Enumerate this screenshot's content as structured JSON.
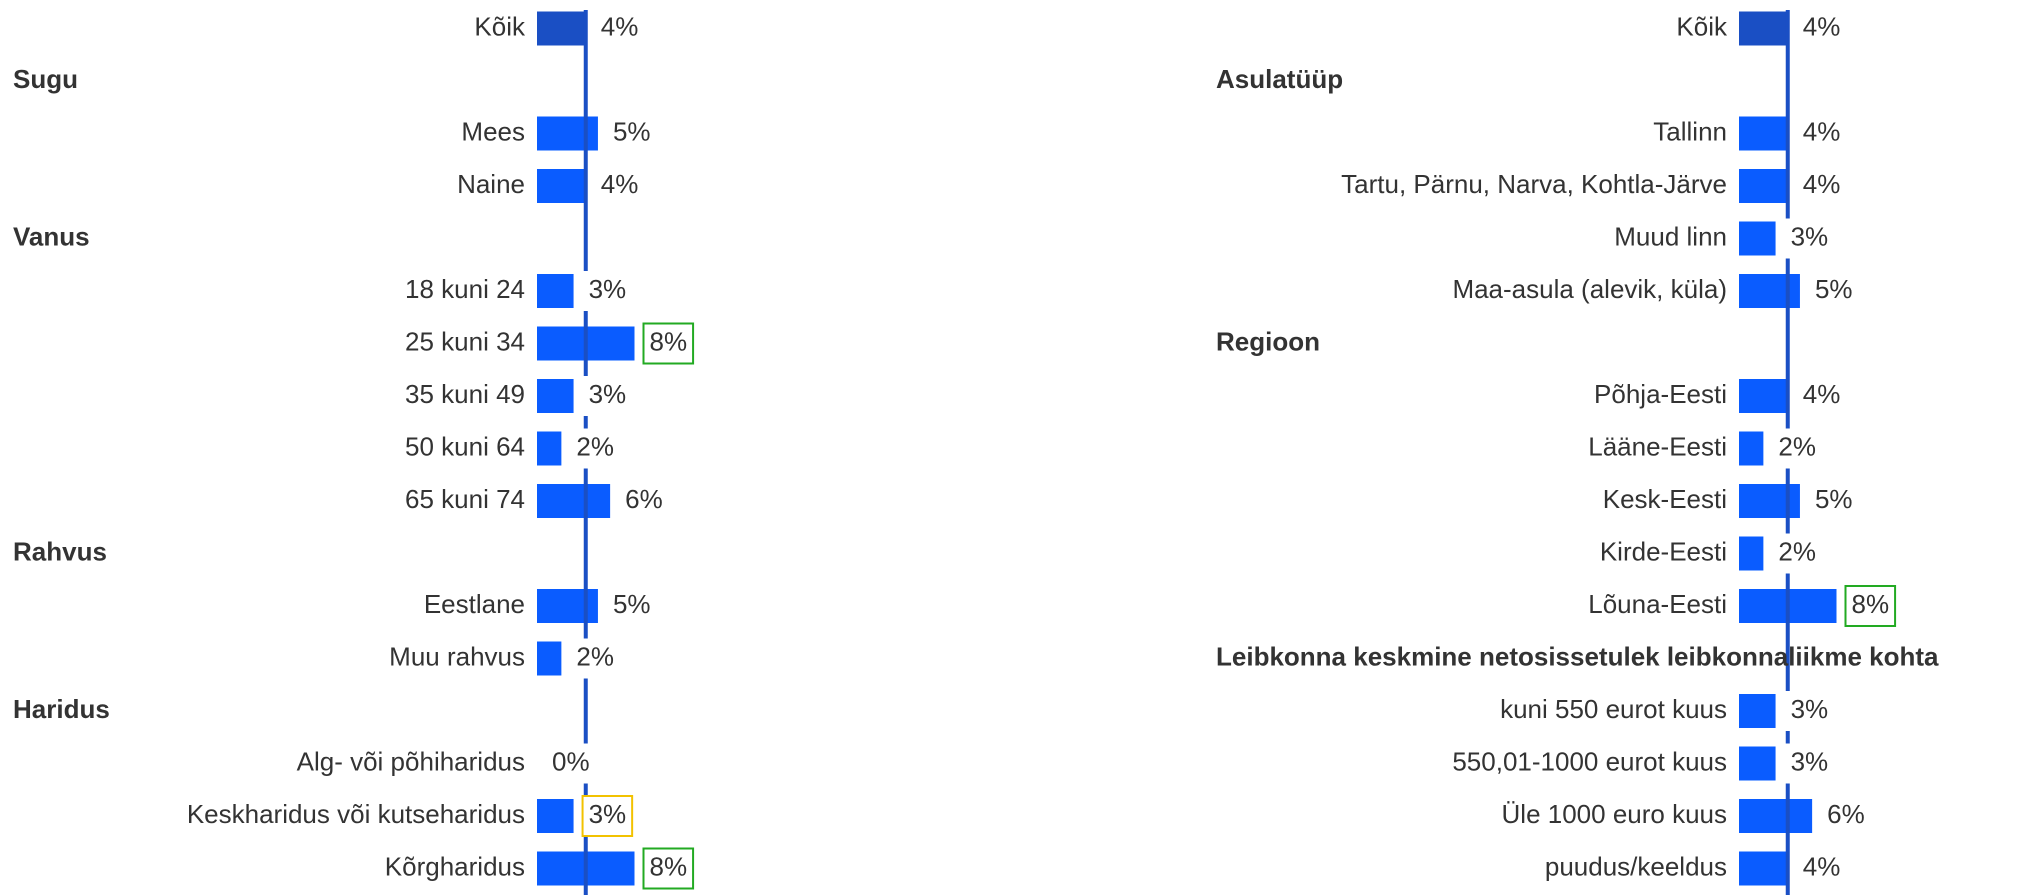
{
  "chart_data": [
    {
      "type": "bar",
      "color": "#0a5cff",
      "total_color": "#1a4fc4",
      "reference_color": "#1a4fc4",
      "xlim": [
        0,
        8
      ],
      "groups": [
        {
          "name": null,
          "categories": [
            "Kõik"
          ],
          "values": [
            4
          ],
          "value_labels": [
            "4%"
          ]
        },
        {
          "name": "Sugu",
          "categories": [
            "Mees",
            "Naine"
          ],
          "values": [
            5,
            4
          ],
          "value_labels": [
            "5%",
            "4%"
          ]
        },
        {
          "name": "Vanus",
          "categories": [
            "18 kuni 24",
            "25 kuni 34",
            "35 kuni 49",
            "50 kuni 64",
            "65 kuni 74"
          ],
          "values": [
            3,
            8,
            3,
            2,
            6
          ],
          "value_labels": [
            "3%",
            "8%",
            "3%",
            "2%",
            "6%"
          ],
          "box_colors": [
            null,
            "#22aa22",
            null,
            null,
            null
          ]
        },
        {
          "name": "Rahvus",
          "categories": [
            "Eestlane",
            "Muu rahvus"
          ],
          "values": [
            5,
            2
          ],
          "value_labels": [
            "5%",
            "2%"
          ]
        },
        {
          "name": "Haridus",
          "categories": [
            "Alg- või põhiharidus",
            "Keskharidus või kutseharidus",
            "Kõrgharidus"
          ],
          "values": [
            0,
            3,
            8
          ],
          "value_labels": [
            "0%",
            "3%",
            "8%"
          ],
          "box_colors": [
            null,
            "#f2c200",
            "#22aa22"
          ]
        }
      ]
    },
    {
      "type": "bar",
      "color": "#0a5cff",
      "total_color": "#1a4fc4",
      "reference_color": "#1a4fc4",
      "xlim": [
        0,
        8
      ],
      "groups": [
        {
          "name": null,
          "categories": [
            "Kõik"
          ],
          "values": [
            4
          ],
          "value_labels": [
            "4%"
          ]
        },
        {
          "name": "Asulatüüp",
          "categories": [
            "Tallinn",
            "Tartu, Pärnu, Narva, Kohtla-Järve",
            "Muud linn",
            "Maa-asula (alevik, küla)"
          ],
          "values": [
            4,
            4,
            3,
            5
          ],
          "value_labels": [
            "4%",
            "4%",
            "3%",
            "5%"
          ]
        },
        {
          "name": "Regioon",
          "categories": [
            "Põhja-Eesti",
            "Lääne-Eesti",
            "Kesk-Eesti",
            "Kirde-Eesti",
            "Lõuna-Eesti"
          ],
          "values": [
            4,
            2,
            5,
            2,
            8
          ],
          "value_labels": [
            "4%",
            "2%",
            "5%",
            "2%",
            "8%"
          ],
          "box_colors": [
            null,
            null,
            null,
            null,
            "#22aa22"
          ]
        },
        {
          "name": "Leibkonna keskmine netosissetulek leibkonnaliikme kohta",
          "categories": [
            "kuni 550 eurot kuus",
            "550,01-1000 eurot kuus",
            "Üle 1000 euro kuus",
            "puudus/keeldus"
          ],
          "values": [
            3,
            3,
            6,
            4
          ],
          "value_labels": [
            "3%",
            "3%",
            "6%",
            "4%"
          ]
        }
      ]
    }
  ]
}
